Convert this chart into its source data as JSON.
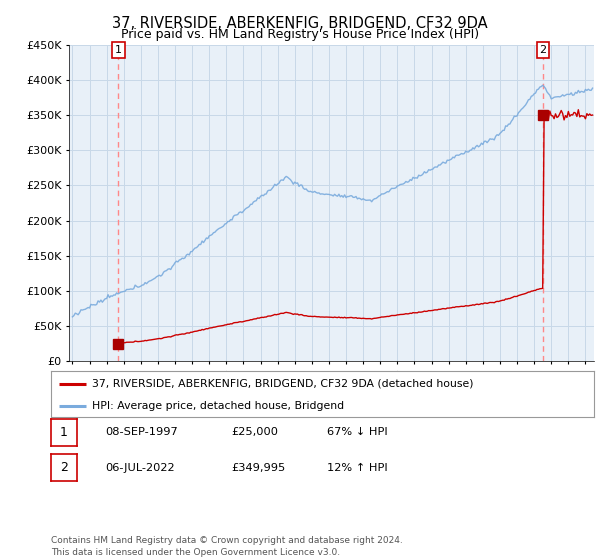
{
  "title": "37, RIVERSIDE, ABERKENFIG, BRIDGEND, CF32 9DA",
  "subtitle": "Price paid vs. HM Land Registry's House Price Index (HPI)",
  "ylim": [
    0,
    450000
  ],
  "yticks": [
    0,
    50000,
    100000,
    150000,
    200000,
    250000,
    300000,
    350000,
    400000,
    450000
  ],
  "ytick_labels": [
    "£0",
    "£50K",
    "£100K",
    "£150K",
    "£200K",
    "£250K",
    "£300K",
    "£350K",
    "£400K",
    "£450K"
  ],
  "xlim_start": 1994.8,
  "xlim_end": 2025.5,
  "hpi_color": "#7aabdd",
  "price_color": "#cc0000",
  "dashed_line_color": "#ff8888",
  "marker_color": "#aa0000",
  "chart_bg": "#e8f0f8",
  "point1_x": 1997.69,
  "point1_y": 25000,
  "point2_x": 2022.52,
  "point2_y": 349995,
  "point1_label": "1",
  "point2_label": "2",
  "legend_line1": "37, RIVERSIDE, ABERKENFIG, BRIDGEND, CF32 9DA (detached house)",
  "legend_line2": "HPI: Average price, detached house, Bridgend",
  "table_row1": [
    "1",
    "08-SEP-1997",
    "£25,000",
    "67% ↓ HPI"
  ],
  "table_row2": [
    "2",
    "06-JUL-2022",
    "£349,995",
    "12% ↑ HPI"
  ],
  "footer": "Contains HM Land Registry data © Crown copyright and database right 2024.\nThis data is licensed under the Open Government Licence v3.0.",
  "bg_color": "#ffffff",
  "grid_color": "#c8d8e8",
  "title_fontsize": 10.5,
  "subtitle_fontsize": 9
}
